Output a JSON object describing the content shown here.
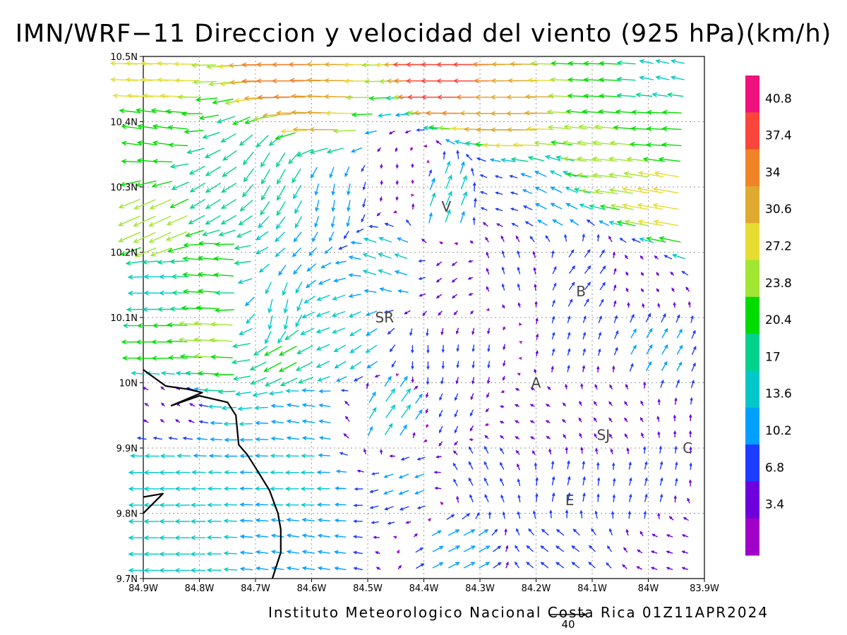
{
  "title": "IMN/WRF−11 Direccion y velocidad del viento (925 hPa)(km/h)",
  "credit": "Instituto Meteorologico Nacional Costa Rica 01Z11APR2024",
  "chart_data": {
    "type": "vector",
    "title": "IMN/WRF−11 Direccion y velocidad del viento (925 hPa)(km/h)",
    "x_ticks": [
      "84.9W",
      "84.8W",
      "84.7W",
      "84.6W",
      "84.5W",
      "84.4W",
      "84.3W",
      "84.2W",
      "84.1W",
      "84W",
      "83.9W"
    ],
    "y_ticks": [
      "10.5N",
      "10.4N",
      "10.3N",
      "10.2N",
      "10.1N",
      "10N",
      "9.9N",
      "9.8N",
      "9.7N"
    ],
    "xlim": [
      -84.9,
      -83.9
    ],
    "ylim": [
      9.7,
      10.5
    ],
    "grid": true,
    "colorbar": {
      "unit": "km/h",
      "labels": [
        "40.8",
        "37.4",
        "34",
        "30.6",
        "27.2",
        "23.8",
        "20.4",
        "17",
        "13.6",
        "10.2",
        "6.8",
        "3.4"
      ],
      "colors": [
        "#f0107e",
        "#f8473a",
        "#f08228",
        "#e0a930",
        "#e6dc32",
        "#a0e632",
        "#00dc00",
        "#00d28c",
        "#00c8c8",
        "#00a0ff",
        "#1e3cff",
        "#6e00dc",
        "#a000c8"
      ]
    },
    "reference_vector": {
      "label": "40",
      "value": 40
    },
    "places": [
      {
        "label": "V",
        "lon": -84.36,
        "lat": 10.27
      },
      {
        "label": "B",
        "lon": -84.12,
        "lat": 10.14
      },
      {
        "label": "SR",
        "lon": -84.47,
        "lat": 10.1
      },
      {
        "label": "A",
        "lon": -84.2,
        "lat": 10.0
      },
      {
        "label": "SJ",
        "lon": -84.08,
        "lat": 9.92
      },
      {
        "label": "C",
        "lon": -83.93,
        "lat": 9.9
      },
      {
        "label": "E",
        "lon": -84.14,
        "lat": 9.82
      }
    ],
    "wind_field": {
      "note": "regional samples of wind (u eastward, v northward) in km/h",
      "samples": [
        {
          "lon": -84.85,
          "lat": 10.47,
          "u": -30,
          "v": 1
        },
        {
          "lon": -84.6,
          "lat": 10.47,
          "u": -36,
          "v": 0
        },
        {
          "lon": -84.3,
          "lat": 10.47,
          "u": -40,
          "v": 0
        },
        {
          "lon": -84.05,
          "lat": 10.47,
          "u": -22,
          "v": 1
        },
        {
          "lon": -83.95,
          "lat": 10.47,
          "u": -14,
          "v": 3
        },
        {
          "lon": -84.85,
          "lat": 10.38,
          "u": -21,
          "v": 3
        },
        {
          "lon": -84.55,
          "lat": 10.42,
          "u": -33,
          "v": 1
        },
        {
          "lon": -84.2,
          "lat": 10.41,
          "u": -34,
          "v": 0
        },
        {
          "lon": -83.95,
          "lat": 10.4,
          "u": -21,
          "v": 1
        },
        {
          "lon": -84.05,
          "lat": 10.34,
          "u": -27,
          "v": 3
        },
        {
          "lon": -83.95,
          "lat": 10.27,
          "u": -28,
          "v": 5
        },
        {
          "lon": -84.85,
          "lat": 10.25,
          "u": -24,
          "v": -11
        },
        {
          "lon": -84.75,
          "lat": 10.3,
          "u": -16,
          "v": -10
        },
        {
          "lon": -84.65,
          "lat": 10.33,
          "u": -9,
          "v": -16
        },
        {
          "lon": -84.55,
          "lat": 10.3,
          "u": -2,
          "v": -12
        },
        {
          "lon": -84.45,
          "lat": 10.32,
          "u": 0,
          "v": -4
        },
        {
          "lon": -84.36,
          "lat": 10.27,
          "u": 6,
          "v": 15
        },
        {
          "lon": -84.25,
          "lat": 10.28,
          "u": -7,
          "v": 2
        },
        {
          "lon": -84.15,
          "lat": 10.28,
          "u": -12,
          "v": 6
        },
        {
          "lon": -84.85,
          "lat": 10.15,
          "u": -16,
          "v": 0
        },
        {
          "lon": -84.75,
          "lat": 10.17,
          "u": -22,
          "v": 2
        },
        {
          "lon": -84.65,
          "lat": 10.12,
          "u": -3,
          "v": -15
        },
        {
          "lon": -84.55,
          "lat": 10.1,
          "u": -14,
          "v": -5
        },
        {
          "lon": -84.45,
          "lat": 10.18,
          "u": -14,
          "v": 5
        },
        {
          "lon": -84.35,
          "lat": 10.17,
          "u": -5,
          "v": -4
        },
        {
          "lon": -84.25,
          "lat": 10.17,
          "u": -2,
          "v": 7
        },
        {
          "lon": -84.12,
          "lat": 10.16,
          "u": 6,
          "v": 8
        },
        {
          "lon": -84.0,
          "lat": 10.15,
          "u": -2,
          "v": 3
        },
        {
          "lon": -84.85,
          "lat": 10.05,
          "u": -22,
          "v": 0
        },
        {
          "lon": -84.75,
          "lat": 10.07,
          "u": -25,
          "v": 2
        },
        {
          "lon": -84.62,
          "lat": 10.05,
          "u": -19,
          "v": -10
        },
        {
          "lon": -84.5,
          "lat": 10.06,
          "u": -12,
          "v": -8
        },
        {
          "lon": -84.4,
          "lat": 10.05,
          "u": 0,
          "v": -8
        },
        {
          "lon": -84.3,
          "lat": 10.05,
          "u": -1,
          "v": -7
        },
        {
          "lon": -84.15,
          "lat": 10.05,
          "u": 2,
          "v": 7
        },
        {
          "lon": -84.0,
          "lat": 10.05,
          "u": 6,
          "v": 10
        },
        {
          "lon": -84.85,
          "lat": 9.97,
          "u": -3,
          "v": 3
        },
        {
          "lon": -84.6,
          "lat": 9.95,
          "u": -13,
          "v": 2
        },
        {
          "lon": -84.46,
          "lat": 9.95,
          "u": 10,
          "v": 14
        },
        {
          "lon": -84.35,
          "lat": 9.96,
          "u": -3,
          "v": -7
        },
        {
          "lon": -84.2,
          "lat": 9.95,
          "u": -4,
          "v": 2
        },
        {
          "lon": -84.05,
          "lat": 9.95,
          "u": -3,
          "v": 4
        },
        {
          "lon": -84.85,
          "lat": 9.85,
          "u": -16,
          "v": 0
        },
        {
          "lon": -84.6,
          "lat": 9.85,
          "u": -14,
          "v": 0
        },
        {
          "lon": -84.42,
          "lat": 9.85,
          "u": -10,
          "v": -4
        },
        {
          "lon": -84.3,
          "lat": 9.85,
          "u": -4,
          "v": 8
        },
        {
          "lon": -84.15,
          "lat": 9.82,
          "u": 2,
          "v": 9
        },
        {
          "lon": -84.0,
          "lat": 9.83,
          "u": 2,
          "v": 8
        },
        {
          "lon": -84.85,
          "lat": 9.74,
          "u": -16,
          "v": 0
        },
        {
          "lon": -84.6,
          "lat": 9.74,
          "u": -13,
          "v": 2
        },
        {
          "lon": -84.35,
          "lat": 9.74,
          "u": 12,
          "v": 6
        },
        {
          "lon": -84.15,
          "lat": 9.74,
          "u": -8,
          "v": 6
        },
        {
          "lon": -83.95,
          "lat": 9.74,
          "u": -6,
          "v": 2
        }
      ]
    }
  },
  "coastline": {
    "main": [
      [
        -84.9,
        10.02
      ],
      [
        -84.86,
        9.995
      ],
      [
        -84.82,
        9.99
      ],
      [
        -84.795,
        9.985
      ],
      [
        -84.85,
        9.965
      ],
      [
        -84.8,
        9.98
      ],
      [
        -84.75,
        9.97
      ],
      [
        -84.735,
        9.95
      ],
      [
        -84.73,
        9.905
      ],
      [
        -84.715,
        9.89
      ],
      [
        -84.7,
        9.87
      ],
      [
        -84.675,
        9.835
      ],
      [
        -84.66,
        9.8
      ],
      [
        -84.655,
        9.775
      ],
      [
        -84.655,
        9.74
      ],
      [
        -84.67,
        9.7
      ]
    ],
    "peninsula": [
      [
        -84.9,
        9.825
      ],
      [
        -84.865,
        9.83
      ],
      [
        -84.9,
        9.8
      ]
    ]
  }
}
